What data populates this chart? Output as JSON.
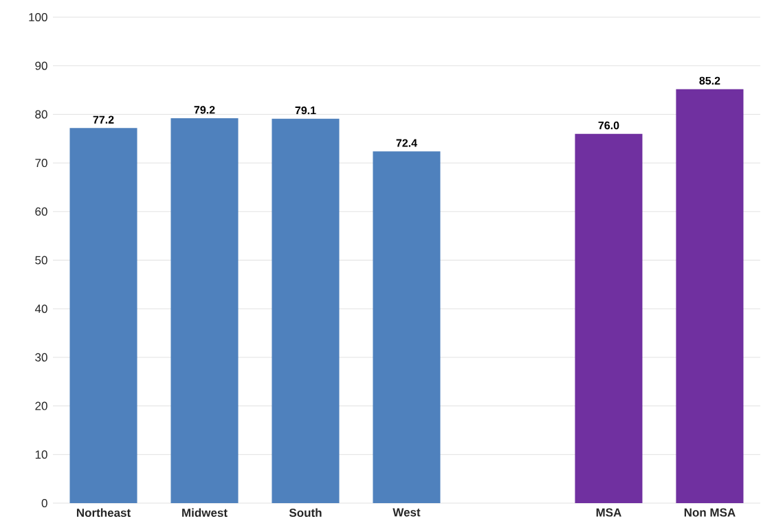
{
  "chart_data": {
    "type": "bar",
    "categories": [
      "Northeast",
      "Midwest",
      "South",
      "West",
      null,
      "MSA",
      "Non MSA"
    ],
    "values": [
      77.2,
      79.2,
      79.1,
      72.4,
      null,
      76.0,
      85.2
    ],
    "colors": [
      "#4f81bd",
      "#4f81bd",
      "#4f81bd",
      "#4f81bd",
      null,
      "#7030a0",
      "#7030a0"
    ],
    "ylim": [
      0,
      100
    ],
    "yticks": [
      0,
      10,
      20,
      30,
      40,
      50,
      60,
      70,
      80,
      90,
      100
    ],
    "value_labels": [
      "77.2",
      "79.2",
      "79.1",
      "72.4",
      null,
      "76.0",
      "85.2"
    ],
    "grid": "y"
  }
}
